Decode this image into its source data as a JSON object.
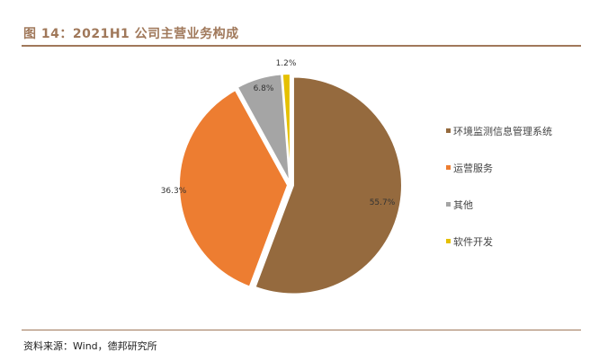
{
  "chart_data": {
    "type": "pie",
    "title": "图 14：2021H1 公司主营业务构成",
    "source": "资料来源：Wind，德邦研究所",
    "legend_position": "right",
    "slices": [
      {
        "name": "环境监测信息管理系统",
        "value": 55.7,
        "label": "55.7%",
        "color": "#956a3e"
      },
      {
        "name": "运营服务",
        "value": 36.3,
        "label": "36.3%",
        "color": "#ed7d31"
      },
      {
        "name": "其他",
        "value": 6.8,
        "label": "6.8%",
        "color": "#a5a5a5"
      },
      {
        "name": "软件开发",
        "value": 1.2,
        "label": "1.2%",
        "color": "#e5c000"
      }
    ]
  }
}
